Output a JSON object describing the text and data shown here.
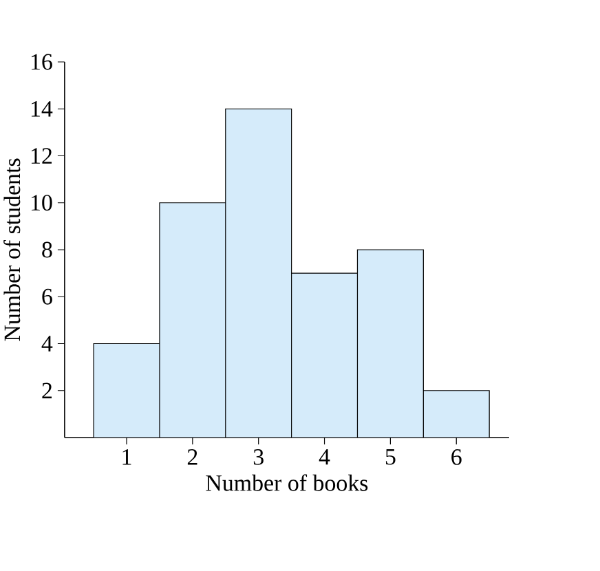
{
  "chart_data": {
    "type": "bar",
    "xlabel": "Number of books",
    "ylabel": "Number of students",
    "categories": [
      "1",
      "2",
      "3",
      "4",
      "5",
      "6"
    ],
    "values": [
      4,
      10,
      14,
      7,
      8,
      2
    ],
    "color": "#d5ebfa",
    "ylim": [
      0,
      16
    ],
    "yticks": [
      2,
      4,
      6,
      8,
      10,
      12,
      14,
      16
    ]
  }
}
